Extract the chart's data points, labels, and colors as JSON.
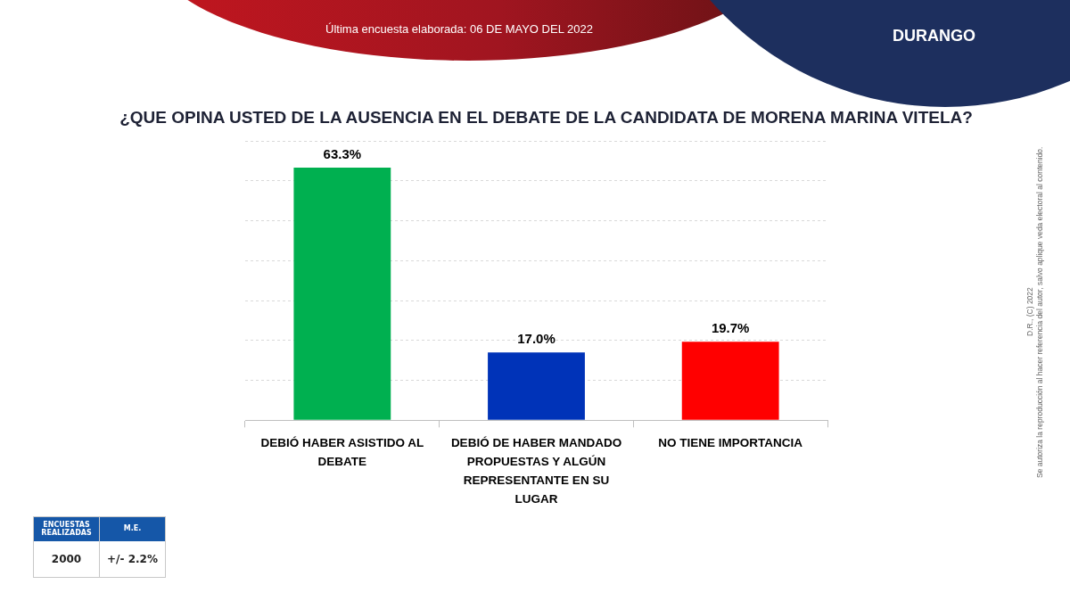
{
  "chart_data": {
    "type": "bar",
    "title": "¿QUE OPINA USTED DE LA AUSENCIA EN EL DEBATE DE LA CANDIDATA DE MORENA MARINA VITELA?",
    "subtitle": "Última encuesta elaborada: 06 DE MAYO DEL 2022",
    "categories": [
      "DEBIÓ HABER ASISTIDO AL DEBATE",
      "DEBIÓ DE HABER MANDADO PROPUESTAS Y ALGÚN REPRESENTANTE EN SU LUGAR",
      "NO TIENE IMPORTANCIA"
    ],
    "values": [
      63.3,
      17.0,
      19.7
    ],
    "value_labels": [
      "63.3%",
      "17.0%",
      "19.7%"
    ],
    "colors": [
      "#00b050",
      "#0033b8",
      "#ff0000"
    ],
    "ylim": [
      0,
      70
    ],
    "yticks": [
      {
        "value": 0,
        "label": null
      },
      {
        "value": 10,
        "label": null
      },
      {
        "value": 20,
        "label": null
      },
      {
        "value": 30,
        "label": null
      },
      {
        "value": 40,
        "label": null
      },
      {
        "value": 50,
        "label": null
      },
      {
        "value": 60,
        "label": null
      },
      {
        "value": 70,
        "label": null
      }
    ],
    "grid": "y",
    "tick_labels": "x",
    "annotations": [
      "DURANGO",
      "ENCUESTAS REALIZADAS",
      "M.E.",
      "2000",
      "+/- 2.2%",
      "D.R., (C) 2022",
      "Se autoriza la reproducción al hacer referencia del autor, salvo aplique veda electoral al contenido."
    ]
  }
}
